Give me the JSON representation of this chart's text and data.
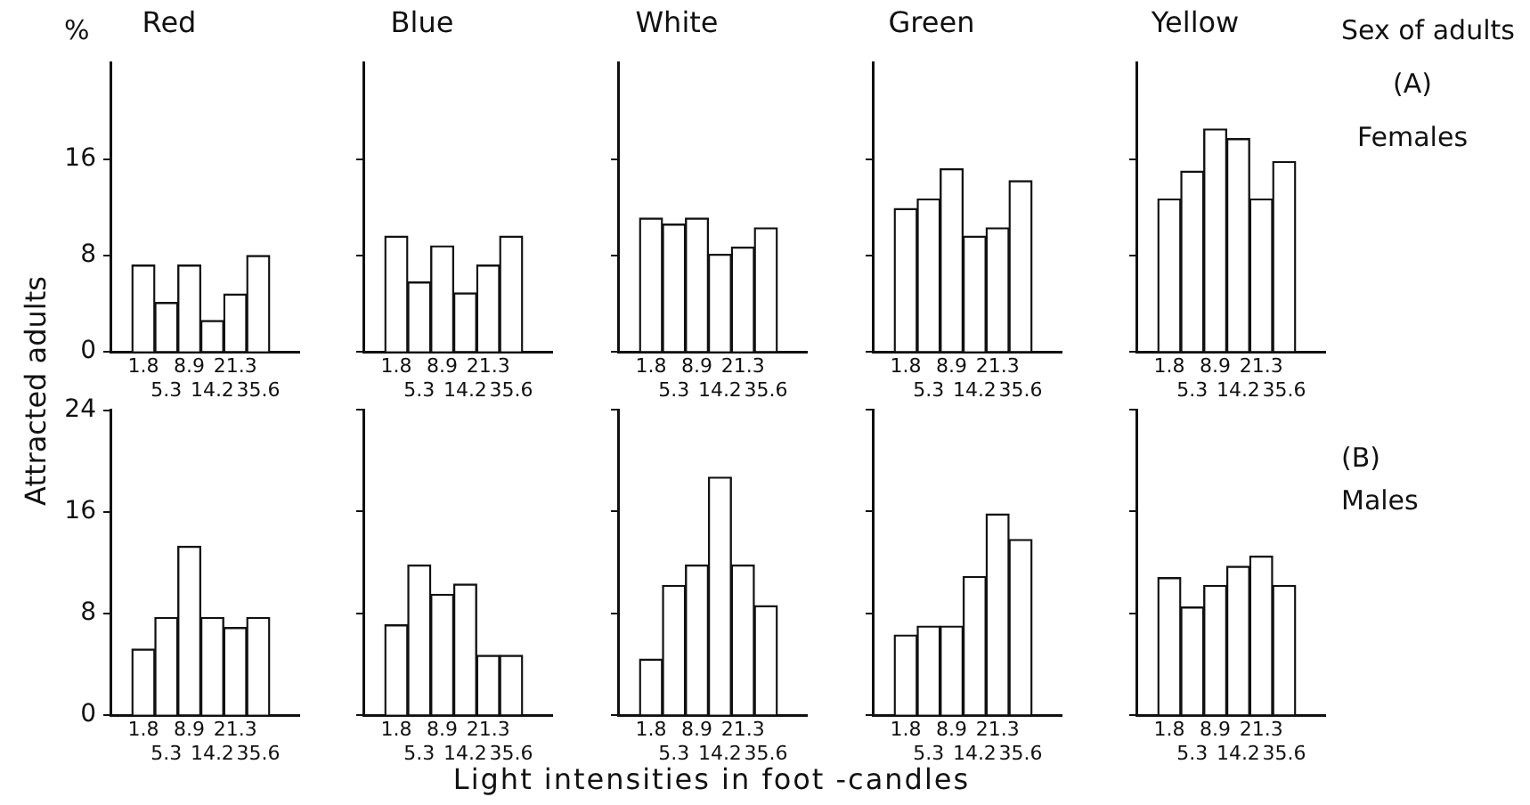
{
  "chart_data": [
    {
      "type": "bar",
      "title": "Red",
      "ylabel": "Attracted adults",
      "annotations": [
        "%"
      ],
      "categories": [
        "1.8",
        "5.3",
        "8.9",
        "14.2",
        "21.3",
        "35.6"
      ],
      "values": [
        7.2,
        4.1,
        7.2,
        2.6,
        4.8,
        8.0
      ],
      "color": "#ffffff",
      "ylim": [
        0,
        24
      ],
      "yticks": [
        0,
        8,
        16
      ]
    },
    {
      "type": "bar",
      "title": "Blue",
      "categories": [
        "1.8",
        "5.3",
        "8.9",
        "14.2",
        "21.3",
        "35.6"
      ],
      "values": [
        9.6,
        5.8,
        8.8,
        4.9,
        7.2,
        9.6
      ],
      "color": "#ffffff",
      "ylim": [
        0,
        24
      ],
      "yticks": [
        0,
        8,
        16
      ],
      "tick_labels": "x"
    },
    {
      "type": "bar",
      "title": "White",
      "categories": [
        "1.8",
        "5.3",
        "8.9",
        "14.2",
        "21.3",
        "35.6"
      ],
      "values": [
        11.1,
        10.6,
        11.1,
        8.1,
        8.7,
        10.3
      ],
      "color": "#ffffff",
      "ylim": [
        0,
        24
      ],
      "yticks": [
        0,
        8,
        16
      ],
      "tick_labels": "x"
    },
    {
      "type": "bar",
      "title": "Green",
      "categories": [
        "1.8",
        "5.3",
        "8.9",
        "14.2",
        "21.3",
        "35.6"
      ],
      "values": [
        11.9,
        12.7,
        15.2,
        9.6,
        10.3,
        14.2
      ],
      "color": "#ffffff",
      "ylim": [
        0,
        24
      ],
      "yticks": [
        0,
        8,
        16
      ],
      "tick_labels": "x"
    },
    {
      "type": "bar",
      "title": "Yellow",
      "annotations": [
        "Sex of adults",
        "(A)",
        "Females"
      ],
      "categories": [
        "1.8",
        "5.3",
        "8.9",
        "14.2",
        "21.3",
        "35.6"
      ],
      "values": [
        12.7,
        15.0,
        18.5,
        17.7,
        12.7,
        15.8
      ],
      "color": "#ffffff",
      "ylim": [
        0,
        24
      ],
      "yticks": [
        0,
        8,
        16
      ],
      "tick_labels": "x"
    },
    {
      "type": "bar",
      "categories": [
        "1.8",
        "5.3",
        "8.9",
        "14.2",
        "21.3",
        "35.6"
      ],
      "values": [
        5.2,
        7.7,
        13.3,
        7.7,
        6.9,
        7.7
      ],
      "color": "#ffffff",
      "ylim": [
        0,
        24
      ],
      "yticks": [
        0,
        8,
        16,
        24
      ]
    },
    {
      "type": "bar",
      "categories": [
        "1.8",
        "5.3",
        "8.9",
        "14.2",
        "21.3",
        "35.6"
      ],
      "values": [
        7.1,
        11.8,
        9.5,
        10.3,
        4.7,
        4.7
      ],
      "color": "#ffffff",
      "ylim": [
        0,
        24
      ],
      "yticks": [
        0,
        8,
        16,
        24
      ],
      "tick_labels": "x"
    },
    {
      "type": "bar",
      "xlabel": "Light intensities in foot -candles",
      "categories": [
        "1.8",
        "5.3",
        "8.9",
        "14.2",
        "21.3",
        "35.6"
      ],
      "values": [
        4.4,
        10.2,
        11.8,
        18.7,
        11.8,
        8.6
      ],
      "color": "#ffffff",
      "ylim": [
        0,
        24
      ],
      "yticks": [
        0,
        8,
        16,
        24
      ],
      "tick_labels": "x"
    },
    {
      "type": "bar",
      "categories": [
        "1.8",
        "5.3",
        "8.9",
        "14.2",
        "21.3",
        "35.6"
      ],
      "values": [
        6.3,
        7.0,
        7.0,
        10.9,
        15.8,
        13.8
      ],
      "color": "#ffffff",
      "ylim": [
        0,
        24
      ],
      "yticks": [
        0,
        8,
        16,
        24
      ],
      "tick_labels": "x"
    },
    {
      "type": "bar",
      "annotations": [
        "(B)",
        "Males"
      ],
      "categories": [
        "1.8",
        "5.3",
        "8.9",
        "14.2",
        "21.3",
        "35.6"
      ],
      "values": [
        10.8,
        8.5,
        10.2,
        11.7,
        12.5,
        10.2
      ],
      "color": "#ffffff",
      "ylim": [
        0,
        24
      ],
      "yticks": [
        0,
        8,
        16,
        24
      ],
      "tick_labels": "x"
    }
  ]
}
